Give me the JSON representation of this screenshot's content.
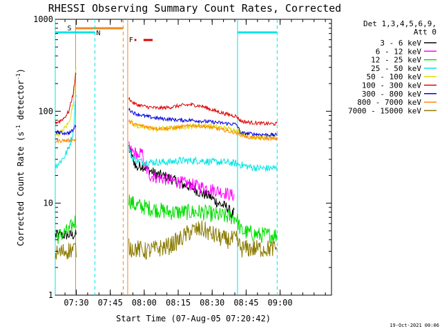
{
  "chart_data": {
    "type": "line",
    "title": "RHESSI Observing Summary Count Rates, Corrected",
    "xlabel": "Start Time (07-Aug-05 07:20:42)",
    "ylabel_main": "Corrected Count Rate (s",
    "ylabel_sup1": "-1",
    "ylabel_mid": " detector",
    "ylabel_sup2": "-1",
    "ylabel_end": ")",
    "y_scale": "log",
    "ylim": [
      1,
      1000
    ],
    "xlim_min": [
      0,
      122
    ],
    "x_tick_labels": [
      "07:30",
      "07:45",
      "08:00",
      "08:15",
      "08:30",
      "08:45",
      "09:00"
    ],
    "x_ticks_min": [
      9.3,
      24.3,
      39.3,
      54.3,
      69.3,
      84.3,
      99.3
    ],
    "y_tick_labels": [
      "1",
      "10",
      "100",
      "1000"
    ],
    "y_ticks": [
      1,
      10,
      100,
      1000
    ],
    "legend_header": [
      "Det 1,3,4,5,6,9,",
      "Att 0"
    ],
    "legend_position": "right-outside",
    "timestamp": "19-Oct-2021 00:06",
    "flags": {
      "S_label": "S",
      "N_label": "N",
      "F_label": "F",
      "S_color": "#ee8822",
      "N_color": "#00e5e5",
      "F_color": "#dd0000",
      "N_bars": [
        [
          0,
          17.5
        ],
        [
          80.5,
          98
        ]
      ],
      "S_bar": [
        9,
        30
      ],
      "F_bars": [
        [
          35,
          35.8
        ],
        [
          39,
          43
        ]
      ],
      "N_lines_solid": [
        0,
        80.5
      ],
      "N_lines_dashed": [
        17.5,
        98
      ],
      "S_lines_solid": [
        9,
        32
      ],
      "S_lines_dashed": [
        30
      ]
    },
    "series": [
      {
        "name": "3 - 6 keV",
        "color": "#000000",
        "noise": 0.06,
        "x": [
          0,
          5,
          9,
          32.5,
          34,
          36,
          38,
          40,
          44,
          50,
          56,
          60,
          64,
          68,
          72,
          76,
          78,
          79
        ],
        "y": [
          4.5,
          4.5,
          4.5,
          40,
          32,
          24,
          26,
          24,
          21,
          19,
          16,
          15,
          13,
          12,
          10,
          9,
          7.5,
          8
        ]
      },
      {
        "name": "6 - 12 keV",
        "color": "#ff00ff",
        "noise": 0.07,
        "x": [
          32.5,
          34,
          36,
          37,
          38,
          39,
          40,
          42,
          45,
          50,
          55,
          60,
          65,
          70,
          75,
          79
        ],
        "y": [
          40,
          36,
          35,
          28,
          44,
          26,
          24,
          20,
          19,
          18,
          17,
          16,
          15,
          14,
          13,
          12
        ]
      },
      {
        "name": "12 - 25 keV",
        "color": "#00dd00",
        "noise": 0.09,
        "x": [
          0,
          3,
          6,
          9,
          32.5,
          35,
          40,
          45,
          50,
          55,
          60,
          65,
          70,
          75,
          80,
          82,
          90,
          98
        ],
        "y": [
          4.2,
          4.6,
          5.0,
          6.5,
          11,
          9.5,
          9,
          8.5,
          8,
          8,
          8,
          8,
          7.5,
          7.2,
          7.0,
          5,
          4.5,
          4.5
        ]
      },
      {
        "name": "25 - 50 keV",
        "color": "#00e5e5",
        "noise": 0.04,
        "x": [
          0,
          2,
          4,
          6,
          8,
          9,
          32.5,
          34,
          36,
          40,
          45,
          50,
          55,
          60,
          65,
          70,
          75,
          80,
          85,
          90,
          95,
          98
        ],
        "y": [
          25,
          28,
          32,
          40,
          60,
          150,
          40,
          31,
          29,
          28,
          28,
          28,
          29,
          29,
          29,
          28,
          28,
          27,
          25,
          24,
          24,
          24
        ]
      },
      {
        "name": "50 - 100 keV",
        "color": "#dddd00",
        "noise": 0.03,
        "x": [
          0,
          3,
          6,
          8,
          9,
          32.5,
          35,
          40,
          45,
          50,
          55,
          60,
          65,
          70,
          75,
          80,
          85,
          90,
          95,
          98
        ],
        "y": [
          55,
          60,
          75,
          120,
          300,
          80,
          70,
          66,
          64,
          65,
          67,
          69,
          70,
          68,
          65,
          62,
          54,
          52,
          51,
          51
        ]
      },
      {
        "name": "100 - 300 keV",
        "color": "#dd0000",
        "noise": 0.02,
        "x": [
          0,
          2,
          4,
          6,
          8,
          9,
          32.5,
          34,
          36,
          40,
          45,
          50,
          55,
          60,
          65,
          70,
          75,
          80,
          82,
          85,
          90,
          95,
          98
        ],
        "y": [
          75,
          78,
          85,
          100,
          160,
          250,
          140,
          125,
          118,
          112,
          108,
          110,
          115,
          118,
          113,
          102,
          94,
          88,
          78,
          76,
          74,
          73,
          73
        ]
      },
      {
        "name": "300 - 800 keV",
        "color": "#0000dd",
        "noise": 0.02,
        "x": [
          0,
          3,
          6,
          8,
          9,
          32.5,
          35,
          40,
          45,
          50,
          55,
          60,
          65,
          70,
          75,
          80,
          82,
          90,
          98
        ],
        "y": [
          60,
          58,
          58,
          62,
          70,
          105,
          95,
          88,
          84,
          82,
          80,
          80,
          78,
          76,
          74,
          72,
          58,
          56,
          55
        ]
      },
      {
        "name": "800 - 7000 keV",
        "color": "#ff8800",
        "noise": 0.02,
        "x": [
          0,
          3,
          6,
          9,
          32.5,
          35,
          40,
          45,
          50,
          55,
          60,
          65,
          70,
          75,
          80,
          85,
          90,
          98
        ],
        "y": [
          47,
          48,
          48,
          49,
          78,
          72,
          68,
          65,
          65,
          67,
          70,
          69,
          66,
          62,
          58,
          52,
          51,
          50
        ]
      },
      {
        "name": "7000 - 15000 keV",
        "color": "#8a7a00",
        "noise": 0.1,
        "x": [
          0,
          4,
          9,
          32.5,
          36,
          40,
          45,
          50,
          55,
          60,
          65,
          70,
          75,
          80,
          82,
          90,
          98
        ],
        "y": [
          2.8,
          3.0,
          3.2,
          3.3,
          3.2,
          3.0,
          3.2,
          3.4,
          4.0,
          5.0,
          5.2,
          4.5,
          4.0,
          4.0,
          3.2,
          3.2,
          3.2
        ]
      }
    ]
  }
}
